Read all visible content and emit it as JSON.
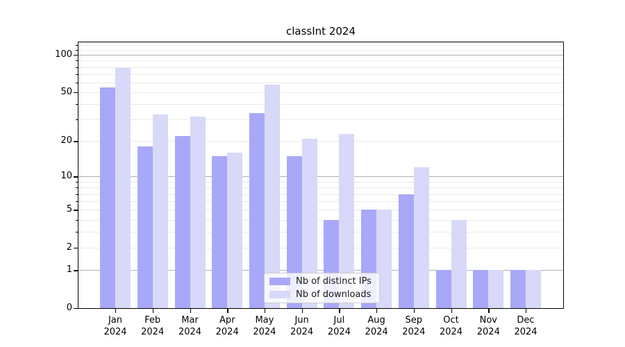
{
  "page": {
    "background": "#ffffff"
  },
  "chart_data": {
    "type": "bar",
    "title": "classInt 2024",
    "grid": true,
    "legend_position": "lower center",
    "y_scale": "log1p",
    "y_axis_range": [
      0,
      124
    ],
    "y_tick_values": [
      100,
      50,
      20,
      10,
      5,
      2,
      1,
      0
    ],
    "y_tick_labels": [
      "100",
      "50",
      "20",
      "10",
      "5",
      "2",
      "1",
      "0"
    ],
    "y_major_gridlines": [
      1,
      10,
      100
    ],
    "y_minor_gridlines": [
      2,
      3,
      4,
      5,
      6,
      7,
      8,
      9,
      20,
      30,
      40,
      50,
      60,
      70,
      80,
      90,
      110,
      120
    ],
    "categories": [
      "Jan",
      "Feb",
      "Mar",
      "Apr",
      "May",
      "Jun",
      "Jul",
      "Aug",
      "Sep",
      "Oct",
      "Nov",
      "Dec"
    ],
    "category_year": "2024",
    "series": [
      {
        "name": "Nb of distinct IPs",
        "color": "#a8a8f8",
        "values": [
          55,
          18,
          22,
          15,
          34,
          15,
          4,
          5,
          7,
          1,
          1,
          1
        ]
      },
      {
        "name": "Nb of downloads",
        "color": "#d8d8f8",
        "values": [
          78,
          33,
          32,
          16,
          58,
          21,
          23,
          5,
          12,
          4,
          1,
          1
        ]
      }
    ],
    "colors": {
      "major_grid": "#b0b0b0",
      "minor_grid": "#eaeaea",
      "axis": "#000000",
      "text": "#000000"
    }
  }
}
